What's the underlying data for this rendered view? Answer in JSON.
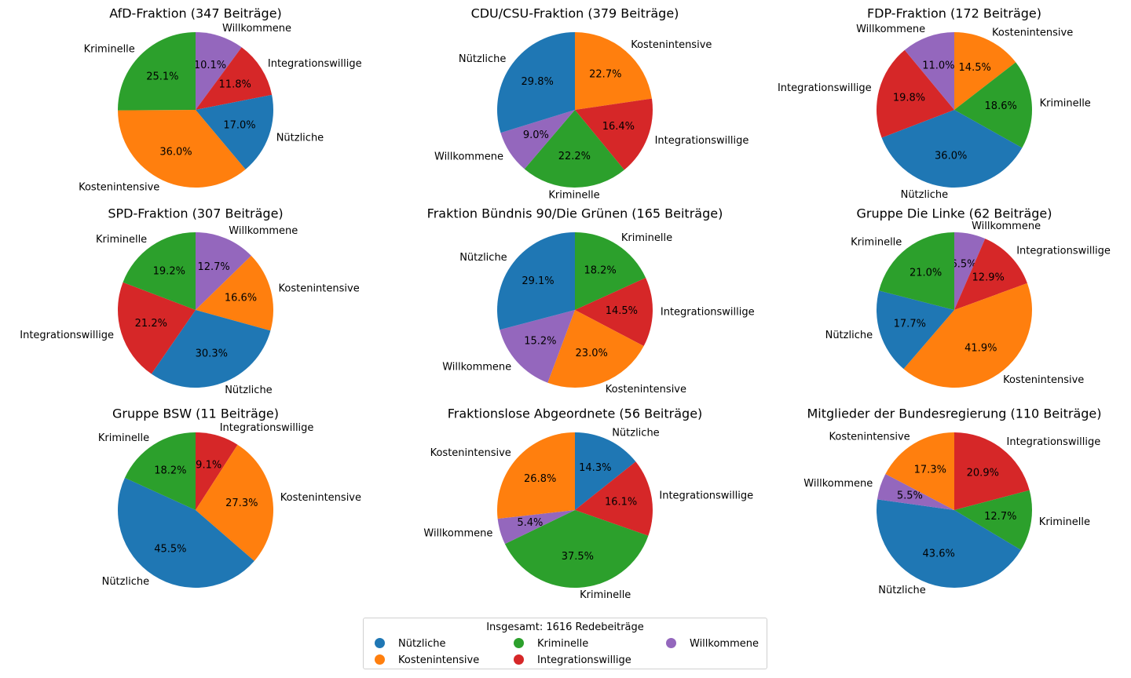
{
  "chart_data": [
    {
      "type": "pie",
      "title": "AfD-Fraktion (347 Beiträge)",
      "slices": [
        {
          "label": "Nützliche",
          "value": 17.0,
          "pct_label": "17.0%"
        },
        {
          "label": "Kostenintensive",
          "value": 36.0,
          "pct_label": "36.0%"
        },
        {
          "label": "Kriminelle",
          "value": 25.1,
          "pct_label": "25.1%"
        },
        {
          "label": "Integrationswillige",
          "value": 11.8,
          "pct_label": "11.8%"
        },
        {
          "label": "Willkommene",
          "value": 10.1,
          "pct_label": "10.1%"
        }
      ],
      "slice_order": [
        "Willkommene",
        "Integrationswillige",
        "Nützliche",
        "Kostenintensive",
        "Kriminelle"
      ]
    },
    {
      "type": "pie",
      "title": "CDU/CSU-Fraktion (379 Beiträge)",
      "slices": [
        {
          "label": "Nützliche",
          "value": 29.8,
          "pct_label": "29.8%"
        },
        {
          "label": "Kostenintensive",
          "value": 22.7,
          "pct_label": "22.7%"
        },
        {
          "label": "Kriminelle",
          "value": 22.2,
          "pct_label": "22.2%"
        },
        {
          "label": "Integrationswillige",
          "value": 16.4,
          "pct_label": "16.4%"
        },
        {
          "label": "Willkommene",
          "value": 9.0,
          "pct_label": "9.0%"
        }
      ],
      "slice_order": [
        "Kostenintensive",
        "Integrationswillige",
        "Kriminelle",
        "Willkommene",
        "Nützliche"
      ]
    },
    {
      "type": "pie",
      "title": "FDP-Fraktion (172 Beiträge)",
      "slices": [
        {
          "label": "Nützliche",
          "value": 36.0,
          "pct_label": "36.0%"
        },
        {
          "label": "Kostenintensive",
          "value": 14.5,
          "pct_label": "14.5%"
        },
        {
          "label": "Kriminelle",
          "value": 18.6,
          "pct_label": "18.6%"
        },
        {
          "label": "Integrationswillige",
          "value": 19.8,
          "pct_label": "19.8%"
        },
        {
          "label": "Willkommene",
          "value": 11.0,
          "pct_label": "11.0%"
        }
      ],
      "slice_order": [
        "Kostenintensive",
        "Kriminelle",
        "Nützliche",
        "Integrationswillige",
        "Willkommene"
      ]
    },
    {
      "type": "pie",
      "title": "SPD-Fraktion (307 Beiträge)",
      "slices": [
        {
          "label": "Nützliche",
          "value": 30.3,
          "pct_label": "30.3%"
        },
        {
          "label": "Kostenintensive",
          "value": 16.6,
          "pct_label": "16.6%"
        },
        {
          "label": "Kriminelle",
          "value": 19.2,
          "pct_label": "19.2%"
        },
        {
          "label": "Integrationswillige",
          "value": 21.2,
          "pct_label": "21.2%"
        },
        {
          "label": "Willkommene",
          "value": 12.7,
          "pct_label": "12.7%"
        }
      ],
      "slice_order": [
        "Willkommene",
        "Kostenintensive",
        "Nützliche",
        "Integrationswillige",
        "Kriminelle"
      ]
    },
    {
      "type": "pie",
      "title": "Fraktion Bündnis 90/Die Grünen (165 Beiträge)",
      "slices": [
        {
          "label": "Nützliche",
          "value": 29.1,
          "pct_label": "29.1%"
        },
        {
          "label": "Kostenintensive",
          "value": 23.0,
          "pct_label": "23.0%"
        },
        {
          "label": "Kriminelle",
          "value": 18.2,
          "pct_label": "18.2%"
        },
        {
          "label": "Integrationswillige",
          "value": 14.5,
          "pct_label": "14.5%"
        },
        {
          "label": "Willkommene",
          "value": 15.2,
          "pct_label": "15.2%"
        }
      ],
      "slice_order": [
        "Kriminelle",
        "Integrationswillige",
        "Kostenintensive",
        "Willkommene",
        "Nützliche"
      ]
    },
    {
      "type": "pie",
      "title": "Gruppe Die Linke (62 Beiträge)",
      "slices": [
        {
          "label": "Nützliche",
          "value": 17.7,
          "pct_label": "17.7%"
        },
        {
          "label": "Kostenintensive",
          "value": 41.9,
          "pct_label": "41.9%"
        },
        {
          "label": "Kriminelle",
          "value": 21.0,
          "pct_label": "21.0%"
        },
        {
          "label": "Integrationswillige",
          "value": 12.9,
          "pct_label": "12.9%"
        },
        {
          "label": "Willkommene",
          "value": 6.5,
          "pct_label": "6.5%"
        }
      ],
      "slice_order": [
        "Willkommene",
        "Integrationswillige",
        "Kostenintensive",
        "Nützliche",
        "Kriminelle"
      ]
    },
    {
      "type": "pie",
      "title": "Gruppe BSW (11 Beiträge)",
      "slices": [
        {
          "label": "Nützliche",
          "value": 45.5,
          "pct_label": "45.5%"
        },
        {
          "label": "Kostenintensive",
          "value": 27.3,
          "pct_label": "27.3%"
        },
        {
          "label": "Kriminelle",
          "value": 18.2,
          "pct_label": "18.2%"
        },
        {
          "label": "Integrationswillige",
          "value": 9.1,
          "pct_label": "9.1%"
        }
      ],
      "slice_order": [
        "Integrationswillige",
        "Kostenintensive",
        "Nützliche",
        "Kriminelle"
      ]
    },
    {
      "type": "pie",
      "title": "Fraktionslose Abgeordnete (56 Beiträge)",
      "slices": [
        {
          "label": "Nützliche",
          "value": 14.3,
          "pct_label": "14.3%"
        },
        {
          "label": "Kostenintensive",
          "value": 26.8,
          "pct_label": "26.8%"
        },
        {
          "label": "Kriminelle",
          "value": 37.5,
          "pct_label": "37.5%"
        },
        {
          "label": "Integrationswillige",
          "value": 16.1,
          "pct_label": "16.1%"
        },
        {
          "label": "Willkommene",
          "value": 5.4,
          "pct_label": "5.4%"
        }
      ],
      "slice_order": [
        "Nützliche",
        "Integrationswillige",
        "Kriminelle",
        "Willkommene",
        "Kostenintensive"
      ]
    },
    {
      "type": "pie",
      "title": "Mitglieder der Bundesregierung (110 Beiträge)",
      "slices": [
        {
          "label": "Nützliche",
          "value": 43.6,
          "pct_label": "43.6%"
        },
        {
          "label": "Kostenintensive",
          "value": 17.3,
          "pct_label": "17.3%"
        },
        {
          "label": "Kriminelle",
          "value": 12.7,
          "pct_label": "12.7%"
        },
        {
          "label": "Integrationswillige",
          "value": 20.9,
          "pct_label": "20.9%"
        },
        {
          "label": "Willkommene",
          "value": 5.5,
          "pct_label": "5.5%"
        }
      ],
      "slice_order": [
        "Integrationswillige",
        "Kriminelle",
        "Nützliche",
        "Willkommene",
        "Kostenintensive"
      ]
    }
  ],
  "colors": {
    "Nützliche": "#1f77b4",
    "Kostenintensive": "#ff7f0e",
    "Kriminelle": "#2ca02c",
    "Integrationswillige": "#d62728",
    "Willkommene": "#9467bd"
  },
  "legend": {
    "title": "Insgesamt: 1616 Redebeiträge",
    "placement": "bottom-center",
    "entries": [
      "Nützliche",
      "Kostenintensive",
      "Kriminelle",
      "Integrationswillige",
      "Willkommene"
    ]
  }
}
